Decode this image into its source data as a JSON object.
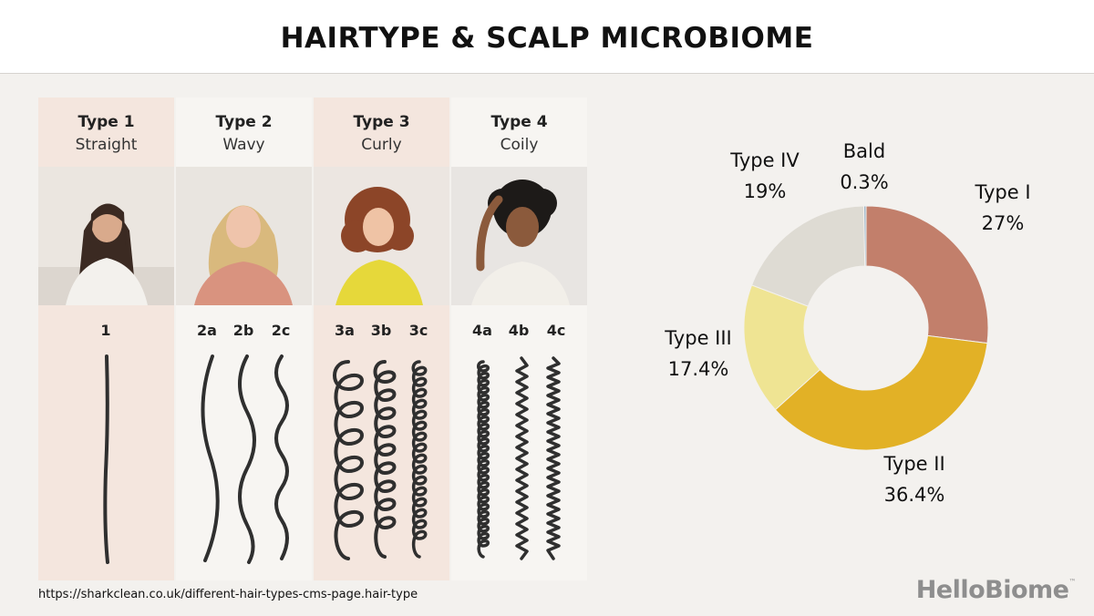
{
  "title": "HAIRTYPE & SCALP MICROBIOME",
  "hair_types": [
    {
      "name": "Type 1",
      "desc": "Straight",
      "subtypes": [
        "1"
      ],
      "tinted": true
    },
    {
      "name": "Type 2",
      "desc": "Wavy",
      "subtypes": [
        "2a",
        "2b",
        "2c"
      ],
      "tinted": false
    },
    {
      "name": "Type 3",
      "desc": "Curly",
      "subtypes": [
        "3a",
        "3b",
        "3c"
      ],
      "tinted": true
    },
    {
      "name": "Type 4",
      "desc": "Coily",
      "subtypes": [
        "4a",
        "4b",
        "4c"
      ],
      "tinted": false
    }
  ],
  "source": "https://sharkclean.co.uk/different-hair-types-cms-page.hair-type",
  "logo": "HelloBiome",
  "logo_mark": "™",
  "chart_data": {
    "type": "pie",
    "donut": true,
    "start": "top, clockwise",
    "slices": [
      {
        "label": "Type I",
        "value": 27,
        "value_text": "27%",
        "color": "#c27f6b"
      },
      {
        "label": "Type II",
        "value": 36.4,
        "value_text": "36.4%",
        "color": "#e2b126"
      },
      {
        "label": "Type III",
        "value": 17.4,
        "value_text": "17.4%",
        "color": "#efe493"
      },
      {
        "label": "Type IV",
        "value": 19,
        "value_text": "19%",
        "color": "#dedbd3"
      },
      {
        "label": "Bald",
        "value": 0.3,
        "value_text": "0.3%",
        "color": "#9fb7c9"
      }
    ]
  }
}
